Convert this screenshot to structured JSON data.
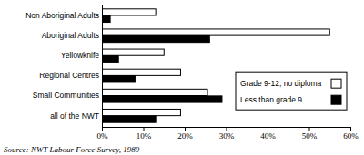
{
  "chart_data": {
    "type": "bar",
    "orientation": "horizontal",
    "categories": [
      "Non Aboriginal Adults",
      "Aboriginal Adults",
      "Yellowknife",
      "Regional Centres",
      "Small Communities",
      "all of the NWT"
    ],
    "series": [
      {
        "name": "Grade 9-12, no diploma",
        "color": "#ffffff",
        "values": [
          13,
          55,
          15,
          19,
          25.5,
          19
        ]
      },
      {
        "name": "Less than grade 9",
        "color": "#000000",
        "values": [
          2,
          26,
          4,
          8,
          29,
          13
        ]
      }
    ],
    "xlim": [
      0,
      60
    ],
    "xticks": [
      {
        "value": 0,
        "label": "0%"
      },
      {
        "value": 10,
        "label": "10%"
      },
      {
        "value": 20,
        "label": "20%"
      },
      {
        "value": 30,
        "label": "30%"
      },
      {
        "value": 40,
        "label": "40%"
      },
      {
        "value": 50,
        "label": "50%"
      },
      {
        "value": 60,
        "label": "60%"
      }
    ],
    "grid": false,
    "legend": "right",
    "source": "Source: NWT Labour Force Survey, 1989"
  }
}
